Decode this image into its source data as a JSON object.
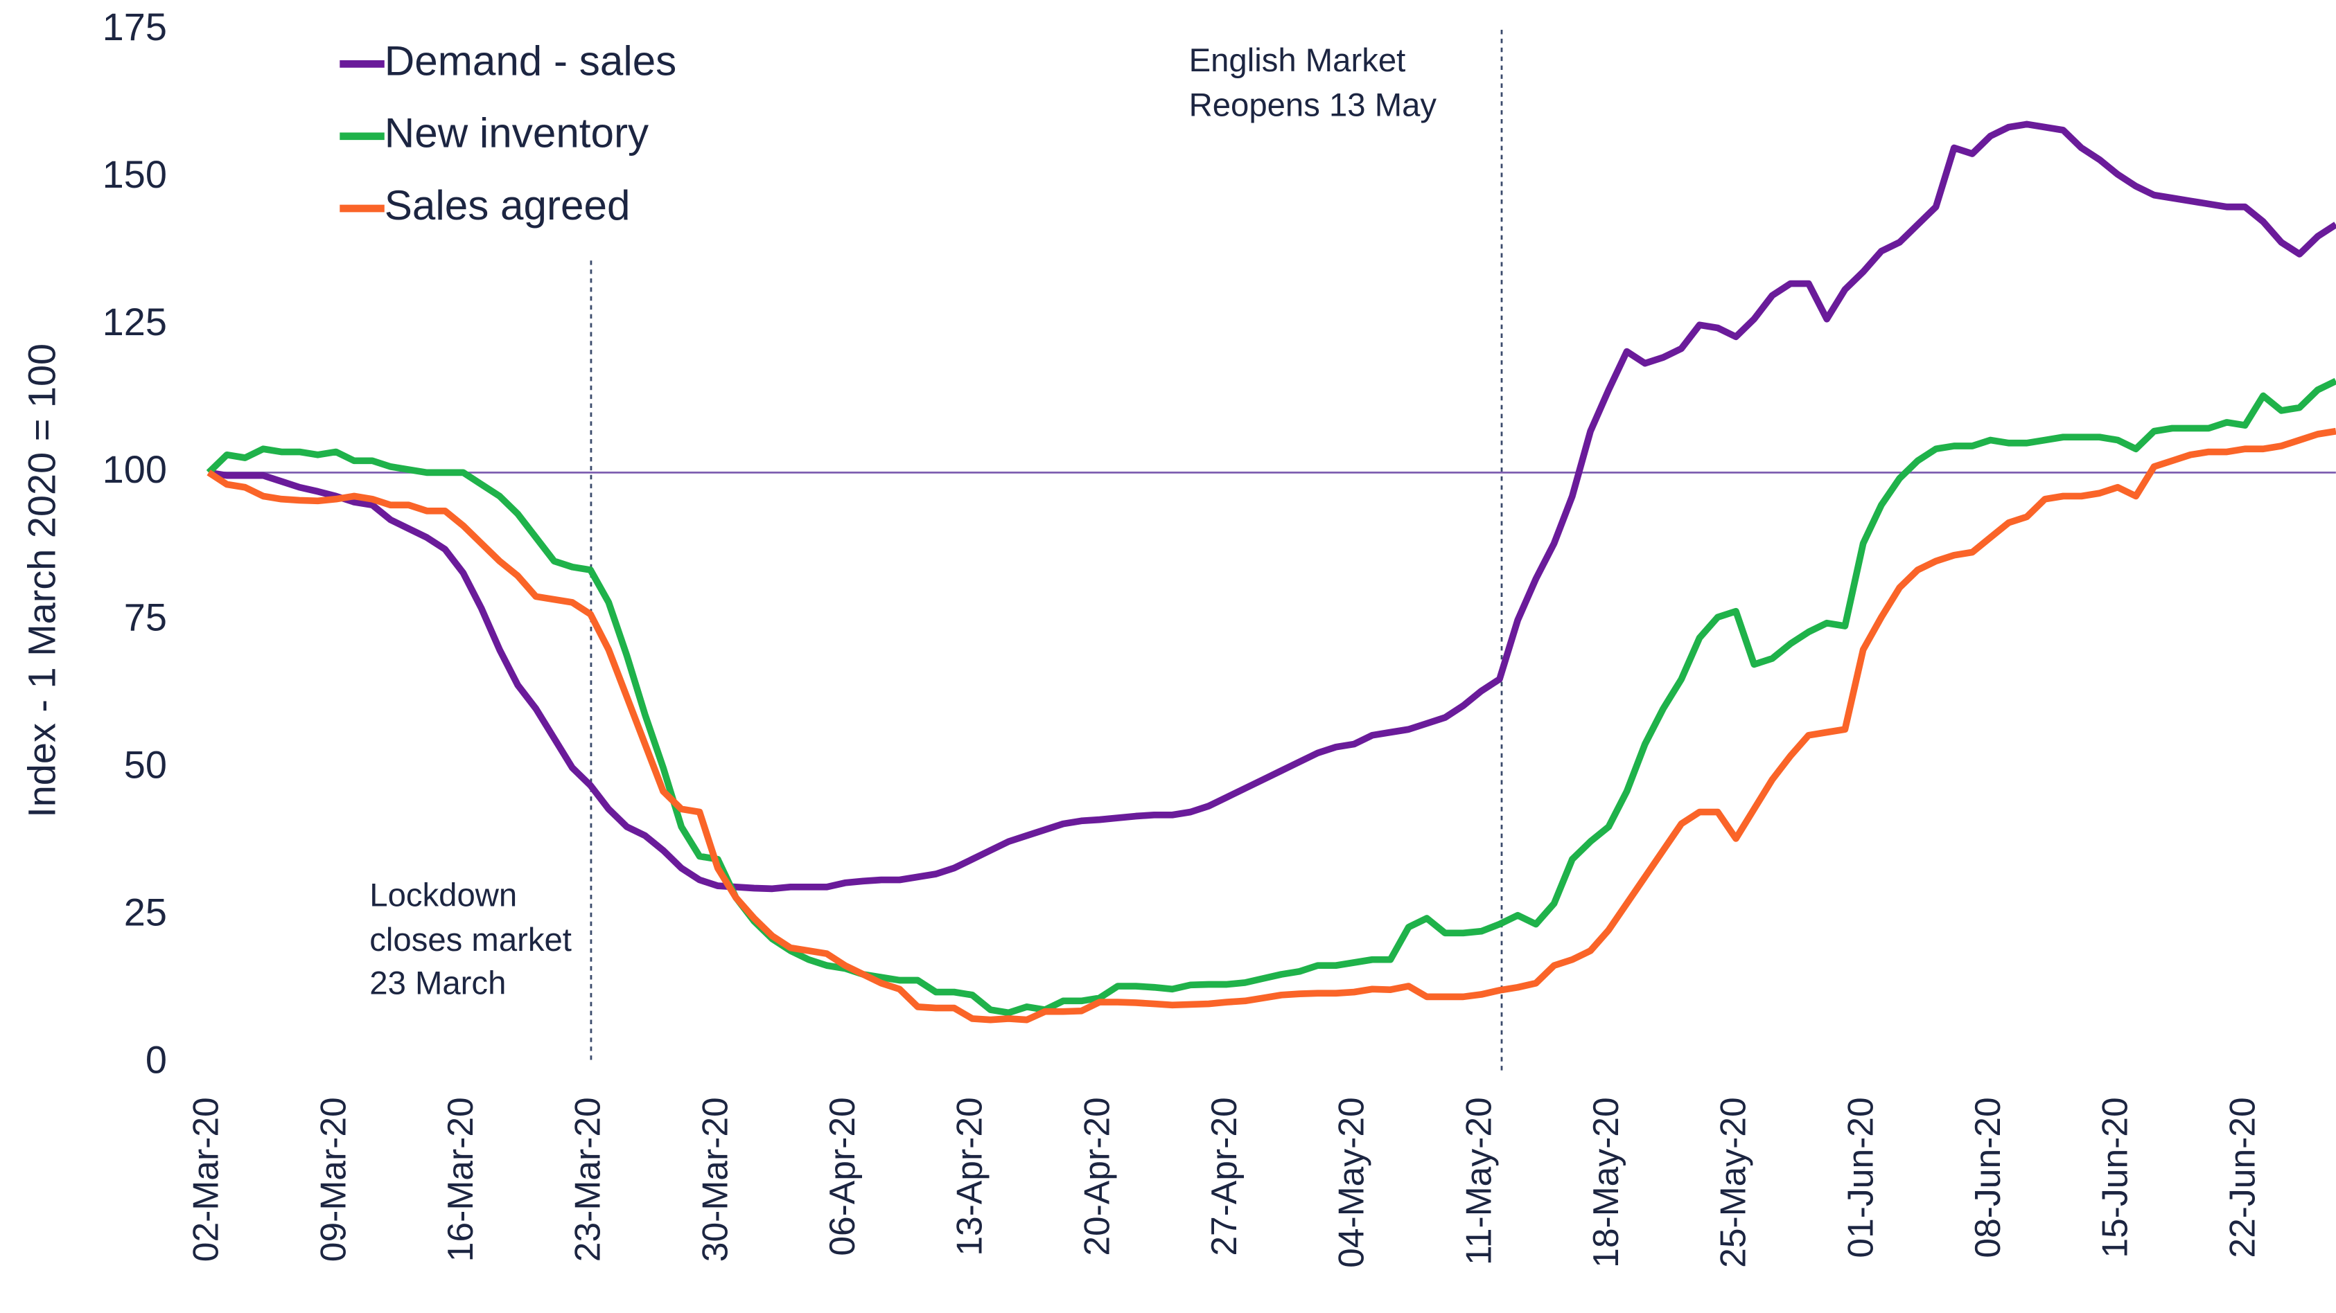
{
  "chart_data": {
    "type": "line",
    "ylabel": "Index - 1 March 2020 = 100",
    "categories": [
      "02-Mar-20",
      null,
      null,
      null,
      null,
      null,
      null,
      "09-Mar-20",
      null,
      null,
      null,
      null,
      null,
      null,
      "16-Mar-20",
      null,
      null,
      null,
      null,
      null,
      null,
      "23-Mar-20",
      null,
      null,
      null,
      null,
      null,
      null,
      "30-Mar-20",
      null,
      null,
      null,
      null,
      null,
      null,
      "06-Apr-20",
      null,
      null,
      null,
      null,
      null,
      null,
      "13-Apr-20",
      null,
      null,
      null,
      null,
      null,
      null,
      "20-Apr-20",
      null,
      null,
      null,
      null,
      null,
      null,
      "27-Apr-20",
      null,
      null,
      null,
      null,
      null,
      null,
      "04-May-20",
      null,
      null,
      null,
      null,
      null,
      null,
      "11-May-20",
      null,
      null,
      null,
      null,
      null,
      null,
      "18-May-20",
      null,
      null,
      null,
      null,
      null,
      null,
      "25-May-20",
      null,
      null,
      null,
      null,
      null,
      null,
      "01-Jun-20",
      null,
      null,
      null,
      null,
      null,
      null,
      "08-Jun-20",
      null,
      null,
      null,
      null,
      null,
      null,
      "15-Jun-20",
      null,
      null,
      null,
      null,
      null,
      null,
      "22-Jun-20",
      null,
      null,
      null,
      null,
      null
    ],
    "series": [
      {
        "name": "Demand - sales",
        "color": "#6a1b9a",
        "values": [
          100,
          99.5,
          99.5,
          99.5,
          98.5,
          97.5,
          96.8,
          96,
          95,
          94.5,
          92,
          90.5,
          89,
          87,
          83,
          77,
          70,
          64,
          60,
          55,
          50,
          47,
          43,
          40,
          38.5,
          36,
          33,
          31,
          30,
          29.8,
          29.6,
          29.5,
          29.8,
          29.8,
          29.8,
          30.5,
          30.8,
          31,
          31,
          31.5,
          32,
          33,
          34.5,
          36,
          37.5,
          38.5,
          39.5,
          40.5,
          41,
          41.2,
          41.5,
          41.8,
          42,
          42,
          42.5,
          43.5,
          45,
          46.5,
          48,
          49.5,
          51,
          52.5,
          53.5,
          54,
          55.5,
          56,
          56.5,
          57.5,
          58.5,
          60.5,
          63,
          65,
          75,
          82,
          88,
          96,
          107,
          114,
          120.5,
          118.5,
          119.5,
          121,
          125,
          124.5,
          123,
          126,
          130,
          132,
          132,
          126,
          131,
          134,
          137.5,
          139,
          142,
          145,
          155,
          154,
          157,
          158.5,
          159,
          158.5,
          158,
          155,
          153,
          150.5,
          148.5,
          147,
          146.5,
          146,
          145.5,
          145,
          145,
          142.5,
          139,
          137,
          140,
          142
        ]
      },
      {
        "name": "New inventory",
        "color": "#1fb24a",
        "values": [
          100,
          103,
          102.5,
          104,
          103.5,
          103.5,
          103,
          103.5,
          102,
          102,
          101,
          100.5,
          100,
          100,
          100,
          98,
          96,
          93,
          89,
          85,
          84,
          83.5,
          78,
          69,
          59,
          50,
          40,
          35,
          34.5,
          28,
          24,
          21,
          19,
          17.5,
          16.5,
          16,
          15,
          14.5,
          14,
          14,
          12,
          12,
          11.5,
          9,
          8.5,
          9.5,
          9,
          10.5,
          10.5,
          11,
          13,
          13,
          12.8,
          12.5,
          13.2,
          13.3,
          13.3,
          13.6,
          14.3,
          15,
          15.5,
          16.5,
          16.5,
          17,
          17.5,
          17.5,
          23,
          24.5,
          22,
          22,
          22.3,
          23.5,
          25,
          23.5,
          27,
          34.5,
          37.5,
          40,
          46,
          54,
          60,
          65,
          72,
          75.5,
          76.5,
          67.5,
          68.5,
          71,
          73,
          74.5,
          74,
          88,
          94.5,
          99,
          102,
          104,
          104.5,
          104.5,
          105.5,
          105,
          105,
          105.5,
          106,
          106,
          106,
          105.5,
          104,
          107,
          107.5,
          107.5,
          107.5,
          108.5,
          108,
          113,
          110.5,
          111,
          114,
          115.5
        ]
      },
      {
        "name": "Sales agreed",
        "color": "#fa6428",
        "values": [
          100,
          98,
          97.5,
          96,
          95.5,
          95.3,
          95.2,
          95.5,
          96,
          95.5,
          94.5,
          94.5,
          93.5,
          93.5,
          91,
          88,
          85,
          82.5,
          79,
          78.5,
          78,
          76,
          70,
          62,
          54,
          46,
          43,
          42.5,
          33,
          28,
          24.5,
          21.5,
          19.5,
          19,
          18.5,
          16.5,
          15,
          13.5,
          12.5,
          9.5,
          9.3,
          9.3,
          7.5,
          7.3,
          7.5,
          7.3,
          8.7,
          8.7,
          8.8,
          10.3,
          10.3,
          10.2,
          10,
          9.8,
          9.9,
          10,
          10.3,
          10.5,
          11,
          11.5,
          11.7,
          11.8,
          11.8,
          12,
          12.5,
          12.4,
          13,
          11.2,
          11.2,
          11.2,
          11.6,
          12.3,
          12.8,
          13.5,
          16.5,
          17.5,
          19,
          22.5,
          27,
          31.5,
          36,
          40.5,
          42.5,
          42.5,
          38,
          43,
          48,
          52,
          55.5,
          56,
          56.5,
          70,
          75.5,
          80.5,
          83.5,
          85,
          86,
          86.5,
          89,
          91.5,
          92.5,
          95.5,
          96,
          96,
          96.5,
          97.5,
          96,
          101,
          102,
          103,
          103.5,
          103.5,
          104,
          104,
          104.5,
          105.5,
          106.5,
          107
        ]
      }
    ],
    "ylim": [
      0,
      175
    ],
    "yticks": [
      0,
      25,
      50,
      75,
      100,
      125,
      150,
      175
    ],
    "reference_line": 100,
    "reference_color": "#7e5fb0",
    "grid": false,
    "legend": "upper left",
    "annotations": [
      {
        "lines": [
          "Lockdown",
          "closes market",
          "23 March"
        ]
      },
      {
        "lines": [
          "English Market",
          "Reopens 13 May"
        ]
      }
    ]
  }
}
